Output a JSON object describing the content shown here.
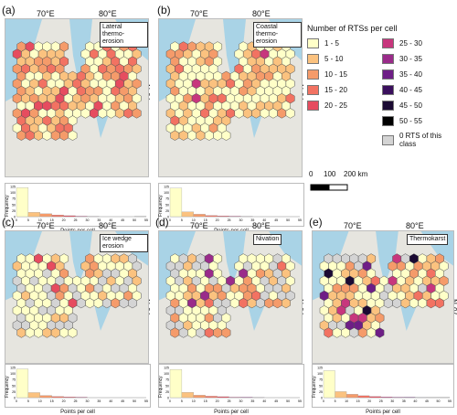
{
  "legend": {
    "title": "Number of RTSs per cell",
    "items": [
      {
        "label": "1 - 5",
        "color": "#ffffc8"
      },
      {
        "label": "5 - 10",
        "color": "#fbc27f"
      },
      {
        "label": "10 - 15",
        "color": "#f59b6a"
      },
      {
        "label": "15 - 20",
        "color": "#f27262"
      },
      {
        "label": "20 - 25",
        "color": "#e64c5f"
      },
      {
        "label": "25 - 30",
        "color": "#c7367d"
      },
      {
        "label": "30 - 35",
        "color": "#9a2b8a"
      },
      {
        "label": "35 - 40",
        "color": "#6e1e86"
      },
      {
        "label": "40 - 45",
        "color": "#3a0f5d"
      },
      {
        "label": "45 - 50",
        "color": "#1b0a33"
      },
      {
        "label": "50 - 55",
        "color": "#000000"
      },
      {
        "label": "0 RTS of this class",
        "color": "#d4d4d4"
      }
    ]
  },
  "scale": {
    "label0": "0",
    "label1": "100",
    "label2": "200 km"
  },
  "axis": {
    "lon1": "70°E",
    "lon2": "80°E",
    "lat": "70°N"
  },
  "histogram_axis": {
    "ylabel": "Frequency",
    "xlabel": "Points per cell",
    "yticks": [
      "0",
      "25",
      "50",
      "75",
      "100",
      "125"
    ],
    "xticks": [
      "0",
      "5",
      "10",
      "15",
      "20",
      "25",
      "30",
      "35",
      "40",
      "45",
      "50",
      "55"
    ]
  },
  "panels": [
    {
      "label": "(a)",
      "title": "Lateral thermo-erosion",
      "seed": 11,
      "profile": "lateral",
      "hist_values": [
        120,
        18,
        12,
        7,
        4,
        2,
        1,
        0,
        0,
        0,
        1
      ]
    },
    {
      "label": "(b)",
      "title": "Coastal thermo-erosion",
      "seed": 23,
      "profile": "coastal",
      "hist_values": [
        118,
        20,
        10,
        5,
        3,
        2,
        1,
        0,
        0,
        0,
        0
      ]
    },
    {
      "label": "(c)",
      "title": "Ice wedge erosion",
      "seed": 37,
      "profile": "icewedge",
      "hist_values": [
        119,
        21,
        9,
        5,
        3,
        2,
        0,
        0,
        0,
        0,
        0
      ]
    },
    {
      "label": "(d)",
      "title": "Nivation",
      "seed": 53,
      "profile": "nivation",
      "hist_values": [
        117,
        22,
        10,
        6,
        4,
        2,
        2,
        1,
        0,
        0,
        0
      ]
    },
    {
      "label": "(e)",
      "title": "Thermokarst",
      "seed": 71,
      "profile": "thermokarst",
      "hist_values": [
        112,
        25,
        14,
        8,
        5,
        3,
        2,
        2,
        1,
        1,
        1
      ]
    }
  ]
}
